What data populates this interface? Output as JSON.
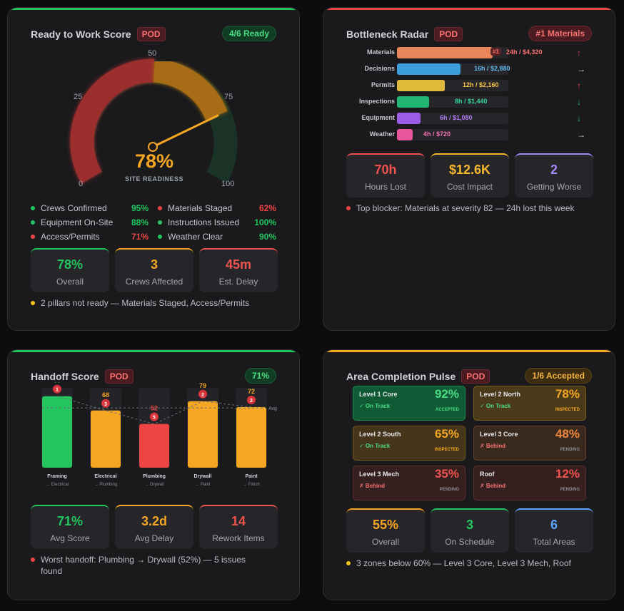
{
  "ready": {
    "title": "Ready to Work Score",
    "pod": "POD",
    "badge": "4/6 Ready",
    "gauge": {
      "value": 78,
      "value_label": "78%",
      "caption": "SITE READINESS",
      "ticks": [
        "0",
        "25",
        "50",
        "75",
        "100"
      ]
    },
    "pillars": [
      {
        "label": "Crews Confirmed",
        "value": "95%",
        "color": "#22c55e"
      },
      {
        "label": "Materials Staged",
        "value": "62%",
        "color": "#ef4444"
      },
      {
        "label": "Equipment On-Site",
        "value": "88%",
        "color": "#22c55e"
      },
      {
        "label": "Instructions Issued",
        "value": "100%",
        "color": "#22c55e"
      },
      {
        "label": "Access/Permits",
        "value": "71%",
        "color": "#ef4444"
      },
      {
        "label": "Weather Clear",
        "value": "90%",
        "color": "#22c55e"
      }
    ],
    "metrics": [
      {
        "value": "78%",
        "label": "Overall",
        "color": "#22c55e"
      },
      {
        "value": "3",
        "label": "Crews Affected",
        "color": "#f5a623"
      },
      {
        "value": "45m",
        "label": "Est. Delay",
        "color": "#ef5350"
      }
    ],
    "note": "2 pillars not ready — Materials Staged, Access/Permits"
  },
  "bottleneck": {
    "title": "Bottleneck Radar",
    "pod": "POD",
    "badge": "#1 Materials",
    "max_hours": 28,
    "rows": [
      {
        "label": "Materials",
        "hours": 24,
        "value": "24h / $4,320",
        "rank": "#1",
        "color": "#e8855a",
        "trend": "↑",
        "trend_color": "#ef4444"
      },
      {
        "label": "Decisions",
        "hours": 16,
        "value": "16h / $2,880",
        "color": "#3b9fdc",
        "trend": "→",
        "trend_color": "#d1d5db"
      },
      {
        "label": "Permits",
        "hours": 12,
        "value": "12h / $2,160",
        "color": "#e0b83a",
        "trend": "↑",
        "trend_color": "#ef4444"
      },
      {
        "label": "Inspections",
        "hours": 8,
        "value": "8h / $1,440",
        "color": "#22b573",
        "trend": "↓",
        "trend_color": "#22c55e"
      },
      {
        "label": "Equipment",
        "hours": 6,
        "value": "6h / $1,080",
        "color": "#9b5de5",
        "trend": "↓",
        "trend_color": "#22c55e"
      },
      {
        "label": "Weather",
        "hours": 4,
        "value": "4h / $720",
        "color": "#e8559a",
        "trend": "→",
        "trend_color": "#d1d5db"
      }
    ],
    "metrics": [
      {
        "value": "70h",
        "label": "Hours Lost",
        "color": "#ef5350"
      },
      {
        "value": "$12.6K",
        "label": "Cost Impact",
        "color": "#f5b82e"
      },
      {
        "value": "2",
        "label": "Getting Worse",
        "color": "#a78bfa"
      }
    ],
    "note": "Top blocker: Materials at severity 82 — 24h lost this week"
  },
  "handoff": {
    "title": "Handoff Score",
    "pod": "POD",
    "badge": "71%",
    "avg_label": "Avg",
    "avg": 71,
    "bars": [
      {
        "trade": "Framing",
        "next": "→ Electrical",
        "score": 85,
        "issues": "1",
        "color": "#22c55e"
      },
      {
        "trade": "Electrical",
        "next": "→ Plumbing",
        "score": 68,
        "issues": "3",
        "color": "#f5a623"
      },
      {
        "trade": "Plumbing",
        "next": "→ Drywall",
        "score": 52,
        "issues": "5",
        "color": "#ef4444"
      },
      {
        "trade": "Drywall",
        "next": "→ Paint",
        "score": 79,
        "issues": "2",
        "color": "#f5a623"
      },
      {
        "trade": "Paint",
        "next": "→ Finish",
        "score": 72,
        "issues": "2",
        "color": "#f5a623"
      }
    ],
    "metrics": [
      {
        "value": "71%",
        "label": "Avg Score",
        "color": "#22c55e"
      },
      {
        "value": "3.2d",
        "label": "Avg Delay",
        "color": "#f5a623"
      },
      {
        "value": "14",
        "label": "Rework Items",
        "color": "#ef5350"
      }
    ],
    "note": "Worst handoff: Plumbing → Drywall (52%) — 5 issues found"
  },
  "area": {
    "title": "Area Completion Pulse",
    "pod": "POD",
    "badge": "1/6 Accepted",
    "tiles": [
      {
        "name": "Level 1 Core",
        "pct": "92%",
        "status": "✓ On Track",
        "tag": "ACCEPTED",
        "tone": "green"
      },
      {
        "name": "Level 2 North",
        "pct": "78%",
        "status": "✓ On Track",
        "tag": "INSPECTED",
        "tone": "amber"
      },
      {
        "name": "Level 2 South",
        "pct": "65%",
        "status": "✓ On Track",
        "tag": "INSPECTED",
        "tone": "amber"
      },
      {
        "name": "Level 3 Core",
        "pct": "48%",
        "status": "✗ Behind",
        "tag": "PENDING",
        "tone": "brown"
      },
      {
        "name": "Level 3 Mech",
        "pct": "35%",
        "status": "✗ Behind",
        "tag": "PENDING",
        "tone": "red"
      },
      {
        "name": "Roof",
        "pct": "12%",
        "status": "✗ Behind",
        "tag": "PENDING",
        "tone": "red"
      }
    ],
    "metrics": [
      {
        "value": "55%",
        "label": "Overall",
        "color": "#f5a623"
      },
      {
        "value": "3",
        "label": "On Schedule",
        "color": "#22c55e"
      },
      {
        "value": "6",
        "label": "Total Areas",
        "color": "#60a5fa"
      }
    ],
    "note": "3 zones below 60% — Level 3 Core, Level 3 Mech, Roof"
  }
}
